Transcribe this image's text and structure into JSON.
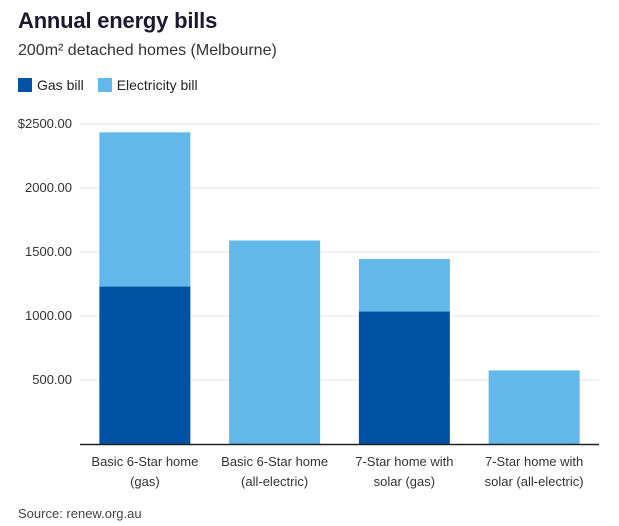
{
  "title": "Annual energy bills",
  "subtitle": "200m² detached homes (Melbourne)",
  "source": "Source: renew.org.au",
  "colors": {
    "gas": "#0052a5",
    "electricity": "#63b8ea",
    "grid": "#e6e6e6",
    "axis": "#222222"
  },
  "legend": [
    {
      "label": "Gas bill",
      "color": "#0052a5"
    },
    {
      "label": "Electricity bill",
      "color": "#63b8ea"
    }
  ],
  "chart_data": {
    "type": "bar",
    "stacked": true,
    "categories": [
      [
        "Basic 6-Star home",
        "(gas)"
      ],
      [
        "Basic 6-Star home",
        "(all-electric)"
      ],
      [
        "7-Star home with",
        "solar (gas)"
      ],
      [
        "7-Star home with",
        "solar (all-electric)"
      ]
    ],
    "series": [
      {
        "name": "Gas bill",
        "values": [
          1230,
          0,
          1035,
          0
        ]
      },
      {
        "name": "Electricity bill",
        "values": [
          1205,
          1590,
          410,
          575
        ]
      }
    ],
    "y_ticks": [
      "$2500.00",
      "2000.00",
      "1500.00",
      "1000.00",
      "500.00"
    ],
    "y_tick_values": [
      2500,
      2000,
      1500,
      1000,
      500
    ],
    "ylim": [
      0,
      2500
    ],
    "grid": true,
    "legend_position": "top-left"
  }
}
